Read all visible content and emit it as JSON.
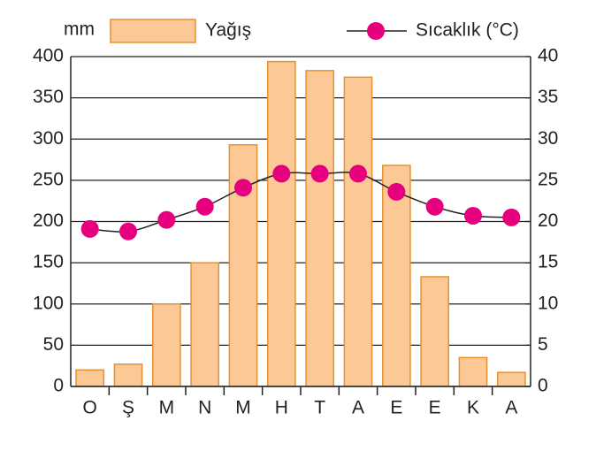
{
  "chart_data": {
    "type": "bar",
    "y_label": "mm",
    "categories": [
      "O",
      "Ş",
      "M",
      "N",
      "M",
      "H",
      "T",
      "A",
      "E",
      "E",
      "K",
      "A"
    ],
    "series": [
      {
        "name": "Yağış",
        "type": "bar",
        "color": "#fcc996",
        "edge_color": "#e8912e",
        "values": [
          20,
          27,
          100,
          150,
          293,
          394,
          383,
          375,
          268,
          133,
          35,
          17
        ]
      },
      {
        "name": "Sıcaklık (°C)",
        "type": "line",
        "axis": "y2",
        "color": "#e6007e",
        "line_color": "#222222",
        "values": [
          19.1,
          18.8,
          20.2,
          21.8,
          24.1,
          25.8,
          25.8,
          25.8,
          23.6,
          21.8,
          20.7,
          20.5
        ]
      }
    ],
    "ylim": [
      0,
      400
    ],
    "yticks": [
      0,
      50,
      100,
      150,
      200,
      250,
      300,
      350,
      400
    ],
    "y2lim": [
      0,
      40
    ],
    "y2ticks": [
      0,
      5,
      10,
      15,
      20,
      25,
      30,
      35,
      40
    ],
    "grid": true
  }
}
